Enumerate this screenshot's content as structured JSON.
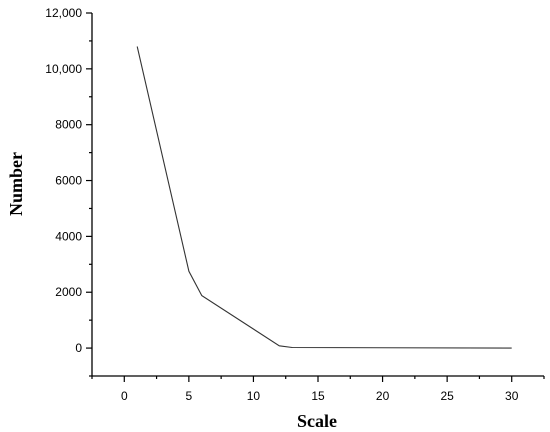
{
  "chart_data": {
    "type": "line",
    "xlabel": "Scale",
    "ylabel": "Number",
    "xlim": [
      -2.5,
      32.5
    ],
    "ylim": [
      -1000,
      12000
    ],
    "x_ticks": [
      0,
      5,
      10,
      15,
      20,
      25,
      30
    ],
    "x_tick_labels": [
      "0",
      "5",
      "10",
      "15",
      "20",
      "25",
      "30"
    ],
    "x_minor_ticks": [
      -2.5,
      2.5,
      7.5,
      12.5,
      17.5,
      22.5,
      27.5,
      32.5
    ],
    "y_ticks": [
      0,
      2000,
      4000,
      6000,
      8000,
      10000,
      12000
    ],
    "y_tick_labels": [
      "0",
      "2000",
      "4000",
      "6000",
      "8000",
      "10,000",
      "12,000"
    ],
    "y_minor_ticks": [
      -1000,
      1000,
      3000,
      5000,
      7000,
      9000,
      11000
    ],
    "grid": false,
    "series": [
      {
        "x": [
          1,
          5,
          6,
          12,
          13,
          30
        ],
        "y": [
          10800,
          2750,
          1880,
          80,
          20,
          0
        ]
      }
    ]
  }
}
